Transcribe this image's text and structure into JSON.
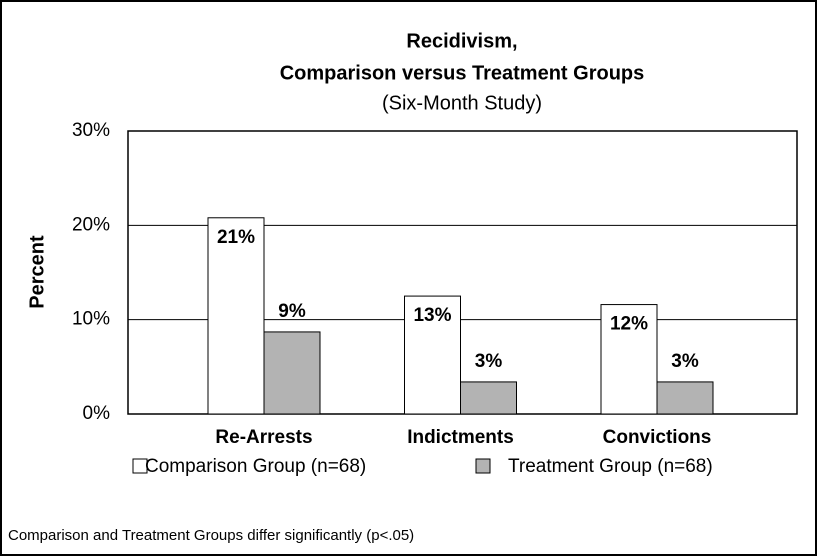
{
  "chart_data": {
    "type": "bar",
    "title": "Recidivism,",
    "subtitle": "Comparison versus Treatment Groups",
    "subtitle2": "(Six-Month Study)",
    "y_label": "Percent",
    "categories": [
      "Re-Arrests",
      "Indictments",
      "Convictions"
    ],
    "series": [
      {
        "name": "Comparison Group (n=68)",
        "color": "#ffffff",
        "values": [
          20.8,
          12.5,
          11.6
        ],
        "value_labels": [
          "21%",
          "13%",
          "12%"
        ]
      },
      {
        "name": "Treatment Group (n=68)",
        "color": "#b3b3b3",
        "values": [
          8.7,
          3.4,
          3.4
        ],
        "value_labels": [
          "9%",
          "3%",
          "3%"
        ]
      }
    ],
    "ylim": [
      0,
      30
    ],
    "yticks": [
      {
        "value": 0,
        "label": "0%"
      },
      {
        "value": 10,
        "label": "10%"
      },
      {
        "value": 20,
        "label": "20%"
      },
      {
        "value": 30,
        "label": "30%"
      }
    ],
    "grid": true,
    "legend": "bottom",
    "note": "Comparison and Treatment Groups differ significantly (p<.05)"
  }
}
